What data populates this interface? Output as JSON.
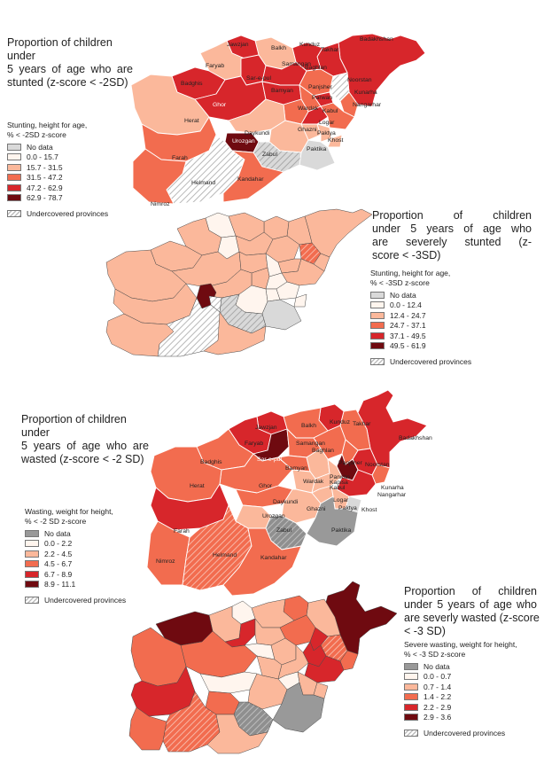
{
  "maps": [
    {
      "title": "Proportion of children under 5 years of age who are stunted (z-score < -2SD)",
      "title_lines": [
        "Proportion of children under",
        "5 years of age who are",
        "stunted (z-score < -2SD)"
      ],
      "legend_title_lines": [
        "Stunting, height for age,",
        "% < -2SD z-score"
      ],
      "legend": [
        {
          "label": "No data",
          "color": "#d9d9d9"
        },
        {
          "label": "0.0 - 15.7",
          "color": "#fff5ee"
        },
        {
          "label": "15.7 - 31.5",
          "color": "#fbb89b"
        },
        {
          "label": "31.5 - 47.2",
          "color": "#f26c4f"
        },
        {
          "label": "47.2 - 62.9",
          "color": "#d7262b"
        },
        {
          "label": "62.9 - 78.7",
          "color": "#6f0a10"
        }
      ],
      "undercovered_label": "Undercovered provinces",
      "province_labels": [
        "Badakhshan",
        "Jawzjan",
        "Balkh",
        "Kunduz",
        "Takhar",
        "Faryab",
        "Samangan",
        "Baghlan",
        "Noorstan",
        "Sar-e-pul",
        "Badghis",
        "Bamyan",
        "Panjsher",
        "Kunarha",
        "Parwan",
        "Ghor",
        "Wardak",
        "Kabul",
        "Nangarhar",
        "Herat",
        "Logar",
        "Paktya",
        "Daykundi",
        "Ghazni",
        "Khost",
        "Urozgan",
        "Zabul",
        "Paktika",
        "Farah",
        "Helmand",
        "Kandahar",
        "Nimroz"
      ]
    },
    {
      "title": "Proportion of children under 5 years of age who are severely stunted (z-score < -3SD)",
      "title_lines": [
        "Proportion of children",
        "under 5 years of age who",
        "are severely stunted (z-",
        "score < -3SD)"
      ],
      "legend_title_lines": [
        "Stunting, height for age,",
        "% < -3SD z-score"
      ],
      "legend": [
        {
          "label": "No data",
          "color": "#d9d9d9"
        },
        {
          "label": "0.0 - 12.4",
          "color": "#fff5ee"
        },
        {
          "label": "12.4 - 24.7",
          "color": "#fbb89b"
        },
        {
          "label": "24.7 - 37.1",
          "color": "#f26c4f"
        },
        {
          "label": "37.1 - 49.5",
          "color": "#d7262b"
        },
        {
          "label": "49.5 - 61.9",
          "color": "#6f0a10"
        }
      ],
      "undercovered_label": "Undercovered provinces"
    },
    {
      "title": "Proportion of children under 5 years of age who are wasted (z-score < -2 SD)",
      "title_lines": [
        "Proportion of children under",
        "5 years of age who are",
        "wasted (z-score < -2 SD)"
      ],
      "legend_title_lines": [
        "Wasting, weight for height,",
        "% < -2 SD z-score"
      ],
      "legend": [
        {
          "label": "No data",
          "color": "#999999"
        },
        {
          "label": "0.0 - 2.2",
          "color": "#fff5ee"
        },
        {
          "label": "2.2 - 4.5",
          "color": "#fbb89b"
        },
        {
          "label": "4.5 - 6.7",
          "color": "#f26c4f"
        },
        {
          "label": "6.7 - 8.9",
          "color": "#d7262b"
        },
        {
          "label": "8.9 - 11.1",
          "color": "#6f0a10"
        }
      ],
      "undercovered_label": "Undercovered provinces",
      "province_labels": [
        "Jawzjan",
        "Balkh",
        "Kunduz",
        "Takhar",
        "Badakhshan",
        "Faryab",
        "Samangan",
        "Baghlan",
        "Sar-e-pul",
        "Badghis",
        "Bamyan",
        "Panjsher",
        "Noorstan",
        "Herat",
        "Ghor",
        "Parwan",
        "Kapisa",
        "Kunarha",
        "Wardak",
        "Kabul",
        "Nangarhar",
        "Ghazni",
        "Logar",
        "Daykundi",
        "Paktya",
        "Khost",
        "Urozgan",
        "Zabul",
        "Paktika",
        "Farah",
        "Nimroz",
        "Helmand",
        "Kandahar"
      ]
    },
    {
      "title": "Proportion of children under 5 years of age who are severly wasted (z-score < -3 SD)",
      "title_lines": [
        "Proportion of children",
        "under 5 years of age who",
        "are severly wasted (z-score",
        "< -3 SD)"
      ],
      "legend_title_lines": [
        "Severe wasting, weight for height,",
        "% < -3 SD z-score"
      ],
      "legend": [
        {
          "label": "No data",
          "color": "#999999"
        },
        {
          "label": "0.0 - 0.7",
          "color": "#fff5ee"
        },
        {
          "label": "0.7 - 1.4",
          "color": "#fbb89b"
        },
        {
          "label": "1.4 - 2.2",
          "color": "#f26c4f"
        },
        {
          "label": "2.2 - 2.9",
          "color": "#d7262b"
        },
        {
          "label": "2.9 - 3.6",
          "color": "#6f0a10"
        }
      ],
      "undercovered_label": "Undercovered provinces"
    }
  ]
}
